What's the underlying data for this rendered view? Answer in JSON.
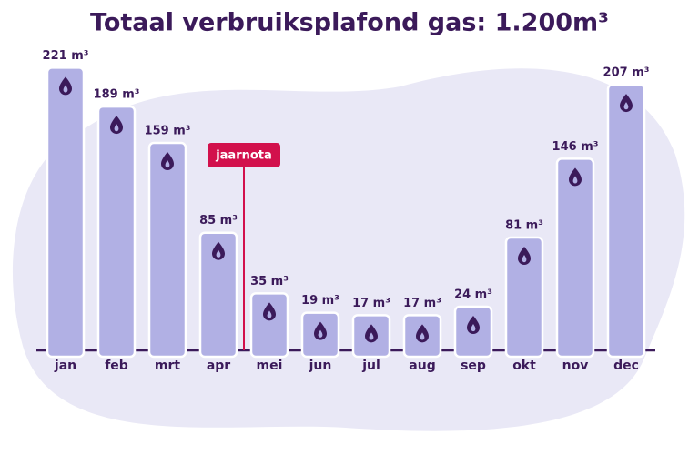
{
  "chart_data": {
    "type": "bar",
    "title": "Totaal verbruiksplafond gas: 1.200m³",
    "categories": [
      "jan",
      "feb",
      "mrt",
      "apr",
      "mei",
      "jun",
      "jul",
      "aug",
      "sep",
      "okt",
      "nov",
      "dec"
    ],
    "values": [
      221,
      189,
      159,
      85,
      35,
      19,
      17,
      17,
      24,
      81,
      146,
      207
    ],
    "value_labels": [
      "221 m³",
      "189 m³",
      "159 m³",
      "85 m³",
      "35 m³",
      "19 m³",
      "17 m³",
      "17 m³",
      "24 m³",
      "81 m³",
      "146 m³",
      "207 m³"
    ],
    "color": "#b1b0e4",
    "annotation": "jaarnota"
  }
}
